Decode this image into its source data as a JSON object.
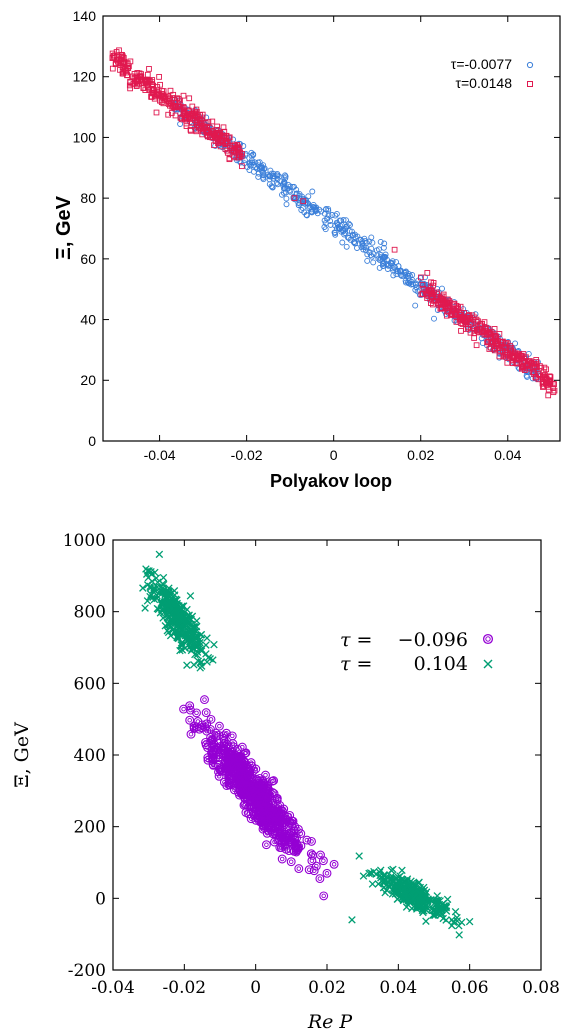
{
  "chart_data": [
    {
      "type": "scatter",
      "xlabel": "Polyakov loop",
      "ylabel": "Ξ, GeV",
      "xlim": [
        -0.053,
        0.052
      ],
      "ylim": [
        0,
        140
      ],
      "xticks": [
        -0.04,
        -0.02,
        0,
        0.02,
        0.04
      ],
      "xtick_labels": [
        "-0.04",
        "-0.02",
        "0",
        "0.02",
        "0.04"
      ],
      "yticks": [
        0,
        20,
        40,
        60,
        80,
        100,
        120,
        140
      ],
      "ytick_labels": [
        "0",
        "20",
        "40",
        "60",
        "80",
        "100",
        "120",
        "140"
      ],
      "grid": false,
      "legend_position": "top-right",
      "series": [
        {
          "name": "τ=-0.0077",
          "marker": "circle",
          "color": "#3b7fd9",
          "x_range": [
            -0.037,
            0.047
          ],
          "trend": {
            "slope": -1060,
            "intercept": 72
          },
          "spread": 1.8,
          "count": 650
        },
        {
          "name": "τ=0.0148",
          "marker": "square",
          "color": "#e0194f",
          "segments": [
            {
              "x_range": [
                -0.051,
                -0.021
              ],
              "count": 330
            },
            {
              "x_range": [
                0.02,
                0.051
              ],
              "count": 330
            }
          ],
          "trend": {
            "slope": -1060,
            "intercept": 72
          },
          "spread": 1.8,
          "outliers": [
            [
              -0.033,
              106
            ],
            [
              -0.022,
              97
            ],
            [
              -0.009,
              80
            ],
            [
              0.014,
              63
            ],
            [
              -0.007,
              79
            ]
          ]
        }
      ]
    },
    {
      "type": "scatter",
      "xlabel": "Re P",
      "ylabel": "Ξ, GeV",
      "xlim": [
        -0.04,
        0.08
      ],
      "ylim": [
        -200,
        1000
      ],
      "xticks": [
        -0.04,
        -0.02,
        0,
        0.02,
        0.04,
        0.06,
        0.08
      ],
      "xtick_labels": [
        "-0.04",
        "-0.02",
        "0",
        "0.02",
        "0.04",
        "0.06",
        "0.08"
      ],
      "yticks": [
        -200,
        0,
        200,
        400,
        600,
        800,
        1000
      ],
      "ytick_labels": [
        "-200",
        "0",
        "200",
        "400",
        "600",
        "800",
        "1000"
      ],
      "grid": false,
      "legend_position": "top-right",
      "series": [
        {
          "name_parts": [
            "τ = ",
            "−0.096"
          ],
          "marker": "circle-open-double",
          "color": "#9400d3",
          "clusters": [
            {
              "center": [
                -0.0005,
                295
              ],
              "sx": 0.0068,
              "sy": 35,
              "slope": -11500,
              "count": 600
            }
          ],
          "outliers": [
            [
              0.017,
              90
            ],
            [
              0.02,
              70
            ],
            [
              0.022,
              95
            ],
            [
              0.018,
              55
            ],
            [
              0.015,
              80
            ],
            [
              0.012,
              140
            ],
            [
              0.016,
              120
            ],
            [
              0.019,
              105
            ]
          ]
        },
        {
          "name_parts": [
            "τ = ",
            "0.104"
          ],
          "marker": "cross",
          "color": "#009e73",
          "clusters": [
            {
              "center": [
                -0.0215,
                780
              ],
              "sx": 0.0038,
              "sy": 32,
              "slope": -12000,
              "count": 330
            },
            {
              "center": [
                0.044,
                10
              ],
              "sx": 0.0052,
              "sy": 18,
              "slope": -5500,
              "count": 320
            }
          ],
          "outliers": [
            [
              -0.031,
              810
            ],
            [
              -0.012,
              665
            ],
            [
              0.06,
              -65
            ],
            [
              0.055,
              -60
            ],
            [
              0.027,
              -60
            ],
            [
              -0.027,
              960
            ]
          ]
        }
      ]
    }
  ]
}
